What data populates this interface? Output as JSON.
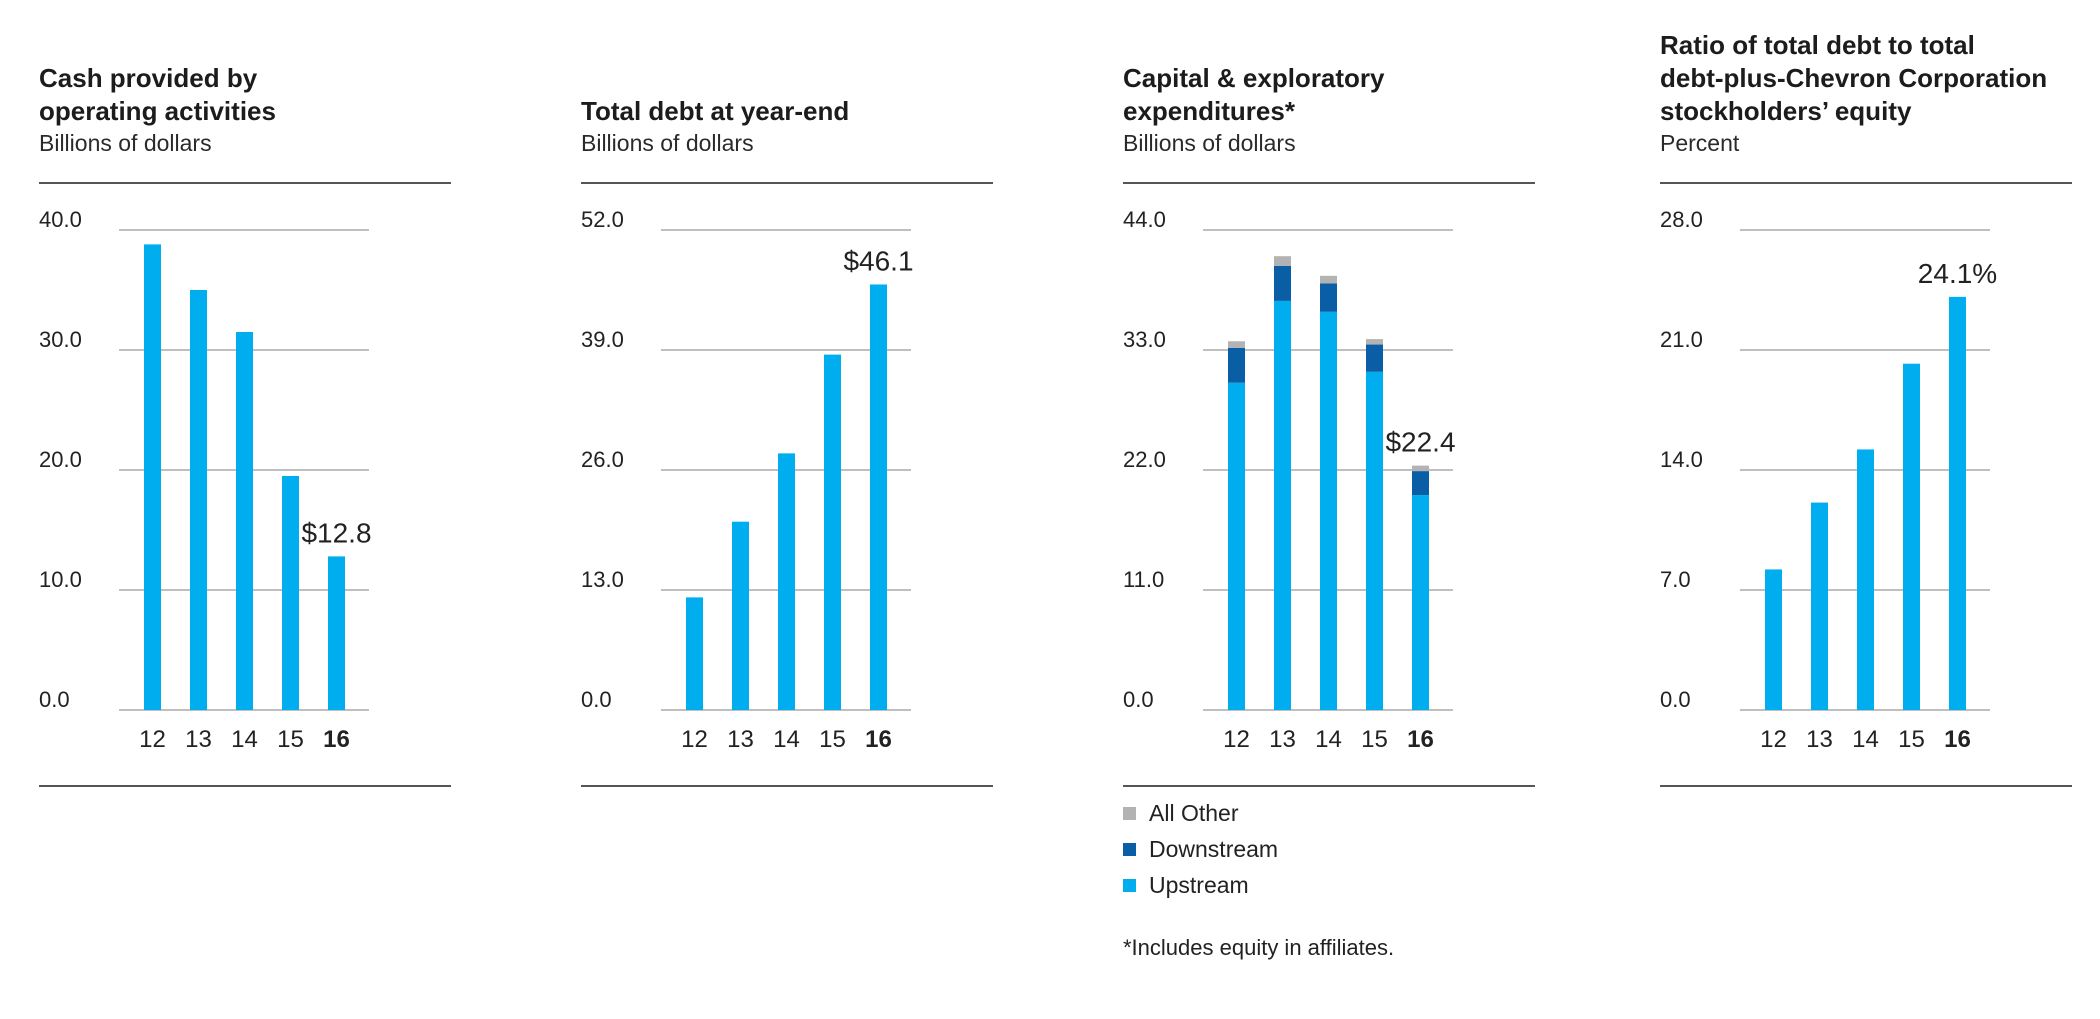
{
  "colors": {
    "upstream": "#00aeef",
    "downstream": "#0a5ea6",
    "all_other": "#b3b3b3",
    "grid": "#999999",
    "text": "#222222"
  },
  "charts": [
    {
      "title_lines": [
        "Cash provided by",
        "operating activities"
      ],
      "subtitle": "Billions of dollars",
      "value_label": "$12.8"
    },
    {
      "title_lines": [
        "Total debt at year-end"
      ],
      "subtitle": "Billions of dollars",
      "value_label": "$46.1"
    },
    {
      "title_lines": [
        "Capital & exploratory",
        "expenditures*"
      ],
      "subtitle": "Billions of dollars",
      "value_label": "$22.4"
    },
    {
      "title_lines": [
        "Ratio of total debt to total",
        "debt-plus-Chevron Corporation",
        "stockholders’ equity"
      ],
      "subtitle": "Percent",
      "value_label": "24.1%"
    }
  ],
  "legend": [
    {
      "label": "All Other",
      "color": "#b3b3b3"
    },
    {
      "label": "Downstream",
      "color": "#0a5ea6"
    },
    {
      "label": "Upstream",
      "color": "#00aeef"
    }
  ],
  "footnote": "*Includes equity in affiliates.",
  "chart_data": [
    {
      "type": "bar",
      "title": "Cash provided by operating activities",
      "ylabel": "Billions of dollars",
      "categories": [
        "12",
        "13",
        "14",
        "15",
        "16"
      ],
      "values": [
        38.8,
        35.0,
        31.5,
        19.5,
        12.8
      ],
      "ylim": [
        0,
        40
      ],
      "yticks": [
        "0.0",
        "10.0",
        "20.0",
        "30.0",
        "40.0"
      ],
      "ytick_values": [
        0,
        10,
        20,
        30,
        40
      ],
      "highlight_category": "16",
      "annotation": "$12.8",
      "grid": true
    },
    {
      "type": "bar",
      "title": "Total debt at year-end",
      "ylabel": "Billions of dollars",
      "categories": [
        "12",
        "13",
        "14",
        "15",
        "16"
      ],
      "values": [
        12.2,
        20.4,
        27.8,
        38.5,
        46.1
      ],
      "ylim": [
        0,
        52
      ],
      "yticks": [
        "0.0",
        "13.0",
        "26.0",
        "39.0",
        "52.0"
      ],
      "ytick_values": [
        0,
        13,
        26,
        39,
        52
      ],
      "highlight_category": "16",
      "annotation": "$46.1",
      "grid": true
    },
    {
      "type": "bar",
      "stacked": true,
      "title": "Capital & exploratory expenditures*",
      "ylabel": "Billions of dollars",
      "categories": [
        "12",
        "13",
        "14",
        "15",
        "16"
      ],
      "series": [
        {
          "name": "Upstream",
          "values": [
            30.0,
            37.5,
            36.5,
            31.0,
            19.7
          ]
        },
        {
          "name": "Downstream",
          "values": [
            3.2,
            3.2,
            2.6,
            2.5,
            2.2
          ]
        },
        {
          "name": "All Other",
          "values": [
            0.6,
            0.9,
            0.7,
            0.5,
            0.5
          ]
        }
      ],
      "ylim": [
        0,
        44
      ],
      "yticks": [
        "0.0",
        "11.0",
        "22.0",
        "33.0",
        "44.0"
      ],
      "ytick_values": [
        0,
        11,
        22,
        33,
        44
      ],
      "highlight_category": "16",
      "annotation": "$22.4",
      "legend_position": "bottom",
      "grid": true
    },
    {
      "type": "bar",
      "title": "Ratio of total debt to total debt-plus-Chevron Corporation stockholders’ equity",
      "ylabel": "Percent",
      "categories": [
        "12",
        "13",
        "14",
        "15",
        "16"
      ],
      "values": [
        8.2,
        12.1,
        15.2,
        20.2,
        24.1
      ],
      "ylim": [
        0,
        28
      ],
      "yticks": [
        "0.0",
        "7.0",
        "14.0",
        "21.0",
        "28.0"
      ],
      "ytick_values": [
        0,
        7,
        14,
        21,
        28
      ],
      "highlight_category": "16",
      "annotation": "24.1%",
      "grid": true
    }
  ]
}
